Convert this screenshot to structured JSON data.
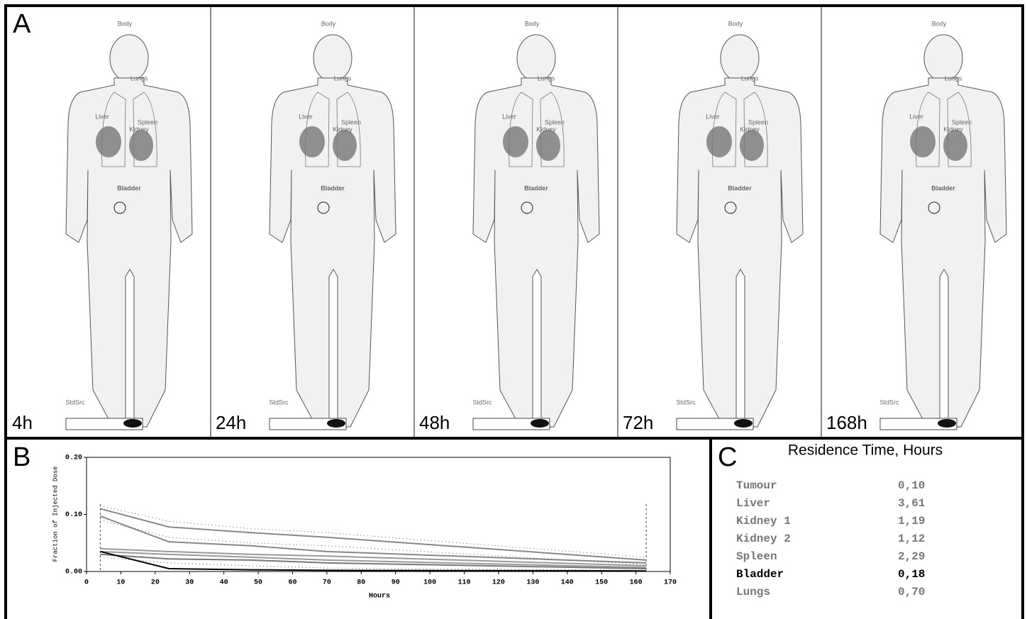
{
  "panel_a": {
    "label": "A",
    "images": [
      {
        "time": "4h",
        "regions": [
          "Body",
          "Lungs",
          "Liver",
          "Spleen",
          "Kidney",
          "Bladder",
          "StdSrc"
        ]
      },
      {
        "time": "24h",
        "regions": [
          "Body",
          "Lungs",
          "Liver",
          "Spleen",
          "Kidney",
          "Bladder",
          "StdSrc"
        ]
      },
      {
        "time": "48h",
        "regions": [
          "Body",
          "Lungs",
          "Liver",
          "Spleen",
          "Kidney",
          "Bladder",
          "StdSrc"
        ]
      },
      {
        "time": "72h",
        "regions": [
          "Body",
          "Lungs",
          "Liver",
          "Spleen",
          "Kidney",
          "Bladder",
          "StdSrc"
        ]
      },
      {
        "time": "168h",
        "regions": [
          "Body",
          "Lungs",
          "Liver",
          "Spleen",
          "Kidney",
          "Bladder",
          "StdSrc"
        ]
      }
    ]
  },
  "panel_b": {
    "label": "B",
    "chart_data": {
      "type": "line",
      "xlabel": "Hours",
      "ylabel": "Fraction of Injected Dose",
      "xlim": [
        0,
        170
      ],
      "ylim": [
        0,
        0.2
      ],
      "xticks": [
        0,
        10,
        20,
        30,
        40,
        50,
        60,
        70,
        80,
        90,
        100,
        110,
        120,
        130,
        140,
        150,
        160,
        170
      ],
      "yticks": [
        {
          "value": 0,
          "label": "0.00"
        },
        {
          "value": 0.1,
          "label": "0.10"
        },
        {
          "value": 0.2,
          "label": "0.20"
        }
      ],
      "vlines": [
        4,
        163
      ],
      "x": [
        4,
        24,
        48,
        70,
        163
      ],
      "series": [
        {
          "color": "#888888",
          "style": "solid",
          "values": [
            0.11,
            0.078,
            0.068,
            0.06,
            0.02
          ]
        },
        {
          "color": "#888888",
          "style": "solid",
          "values": [
            0.097,
            0.052,
            0.045,
            0.035,
            0.015
          ]
        },
        {
          "color": "#999999",
          "style": "solid",
          "values": [
            0.04,
            0.035,
            0.03,
            0.027,
            0.01
          ]
        },
        {
          "color": "#999999",
          "style": "solid",
          "values": [
            0.035,
            0.03,
            0.025,
            0.02,
            0.007
          ]
        },
        {
          "color": "#777777",
          "style": "solid",
          "values": [
            0.03,
            0.022,
            0.02,
            0.015,
            0.005
          ]
        },
        {
          "color": "#000000",
          "style": "solid",
          "values": [
            0.035,
            0.005,
            0.003,
            0.002,
            0.001
          ]
        },
        {
          "color": "#555555",
          "style": "dotted",
          "values": [
            0.115,
            0.088,
            0.075,
            0.068,
            0.025
          ]
        },
        {
          "color": "#555555",
          "style": "dotted",
          "values": [
            0.09,
            0.06,
            0.05,
            0.045,
            0.012
          ]
        },
        {
          "color": "#555555",
          "style": "dotted",
          "values": [
            0.025,
            0.015,
            0.01,
            0.006,
            0.002
          ]
        }
      ]
    }
  },
  "panel_c": {
    "label": "C",
    "title": "Residence Time, Hours",
    "bold_row": 5,
    "rows": [
      [
        "Tumour",
        "0,10"
      ],
      [
        "Liver",
        "3,61"
      ],
      [
        "Kidney 1",
        "1,19"
      ],
      [
        "Kidney 2",
        "1,12"
      ],
      [
        "Spleen",
        "2,29"
      ],
      [
        "Bladder",
        "0,18"
      ],
      [
        "Lungs",
        "0,70"
      ]
    ]
  }
}
